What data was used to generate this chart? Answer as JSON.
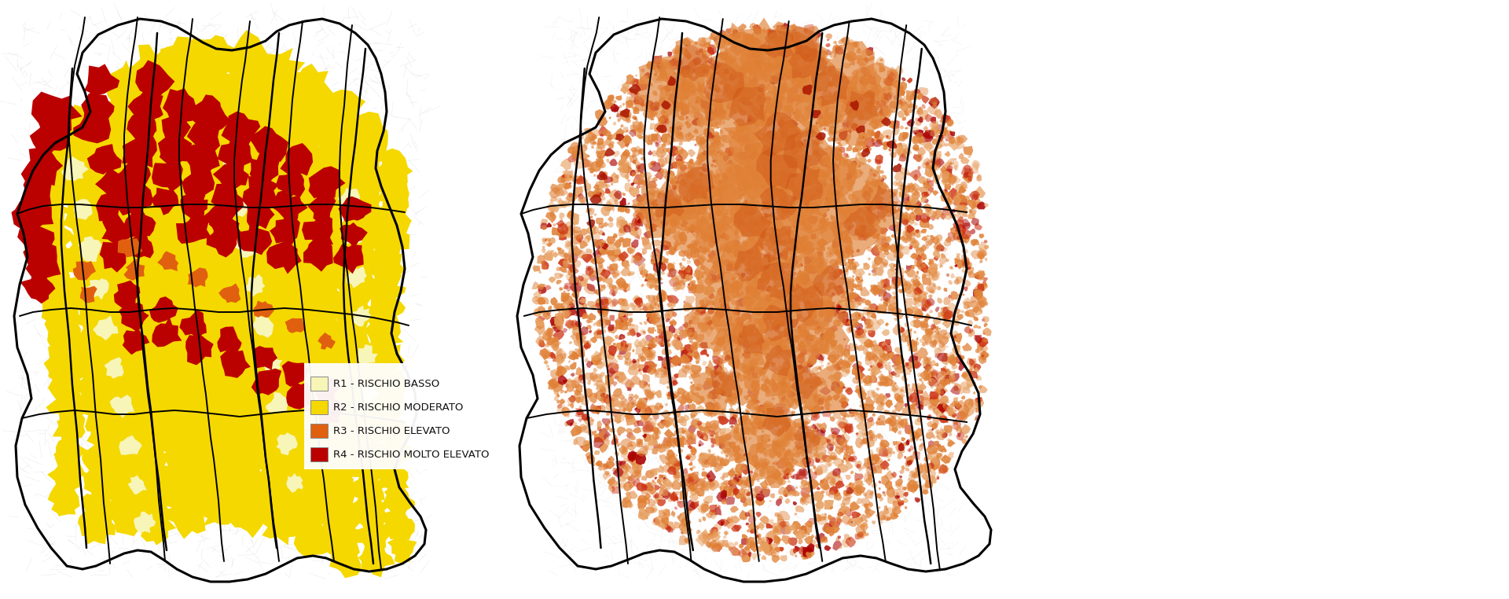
{
  "background_color": "#ffffff",
  "legend_items": [
    {
      "label": "R1 - RISCHIO BASSO",
      "color": "#f7f5b8"
    },
    {
      "label": "R2 - RISCHIO MODERATO",
      "color": "#f5d800"
    },
    {
      "label": "R3 - RISCHIO ELEVATO",
      "color": "#e06010"
    },
    {
      "label": "R4 - RISCHIO MOLTO ELEVATO",
      "color": "#bb0000"
    }
  ],
  "fig_width": 19.2,
  "fig_height": 7.62,
  "dpi": 100
}
